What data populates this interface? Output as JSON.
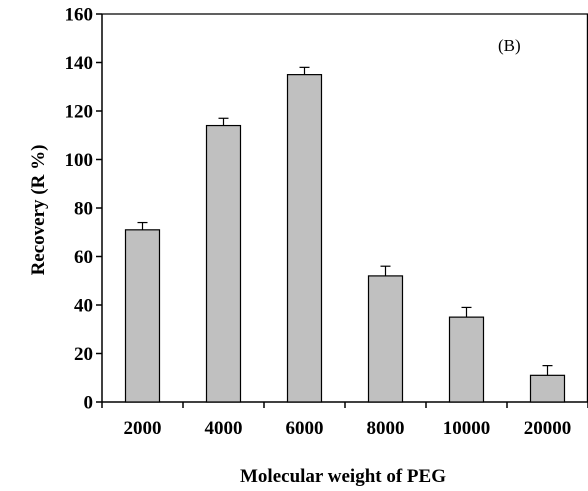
{
  "chart_data": {
    "type": "bar",
    "categories": [
      "2000",
      "4000",
      "6000",
      "8000",
      "10000",
      "20000"
    ],
    "values": [
      71,
      114,
      135,
      52,
      35,
      11
    ],
    "errors": [
      3,
      3,
      3,
      4,
      4,
      4
    ],
    "title": "",
    "panel_label": "(B)",
    "xlabel": "Molecular weight of PEG",
    "ylabel": "Recovery (R %)",
    "ylim": [
      0,
      160
    ],
    "yticks": [
      "0",
      "20",
      "40",
      "60",
      "80",
      "100",
      "120",
      "140",
      "160"
    ],
    "grid": false,
    "colors": {
      "bar_fill": "#c0c0c0",
      "bar_stroke": "#000000",
      "axis": "#000000"
    }
  }
}
